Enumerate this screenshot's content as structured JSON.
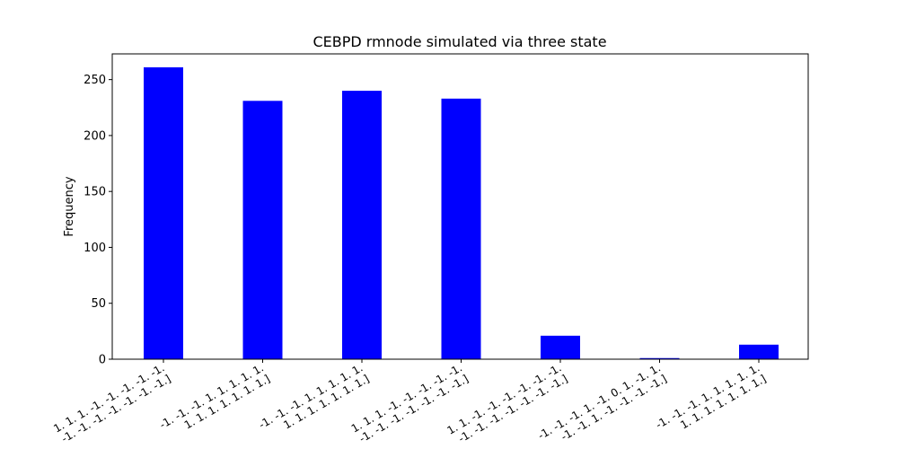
{
  "chart_data": {
    "type": "bar",
    "title": "CEBPD rmnode simulated via three state",
    "xlabel": "",
    "ylabel": "Frequency",
    "ylim": [
      0,
      273
    ],
    "yticks": [
      0,
      50,
      100,
      150,
      200,
      250
    ],
    "grid": false,
    "bar_color": "#0000ff",
    "categories": [
      [
        "1. 1. 1. -1. -1. -1. -1. -1.",
        "-1. -1. -1. -1. -1. -1. -1.]"
      ],
      [
        "-1. -1. -1. 1. 1. 1. 1. 1.",
        "1. 1. 1. 1. 1. 1. 1.]"
      ],
      [
        "-1. -1. -1. 1. 1. 1. 1. 1.",
        "1. 1. 1. 1. 1. 1. 1.]"
      ],
      [
        "1. 1. 1. -1. -1. -1. -1. -1.",
        "-1. -1. -1. -1. -1. -1. -1.]"
      ],
      [
        "1. 1. -1. -1. -1. -1. -1. -1.",
        "-1. -1. -1. -1. -1. -1. -1.]"
      ],
      [
        "-1. -1. -1. 1. -1. 0. 1. -1. 1.",
        "-1. -1. 1. -1. -1. -1. -1.]"
      ],
      [
        "-1. -1. -1. 1. 1. 1. 1. 1.",
        "1. 1. 1. 1. 1. 1. 1.]"
      ]
    ],
    "values": [
      261,
      231,
      240,
      233,
      21,
      1,
      13
    ]
  }
}
